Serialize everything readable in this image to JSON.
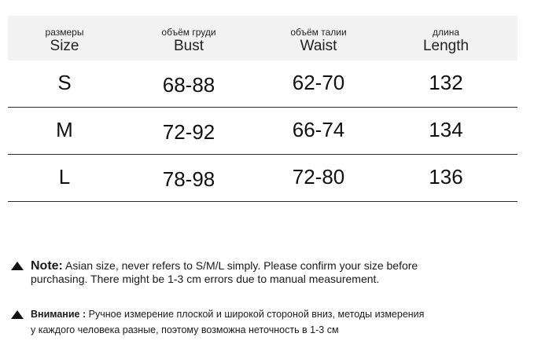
{
  "table": {
    "headers": [
      {
        "ru": "размеры",
        "en": "Size"
      },
      {
        "ru": "объём груди",
        "en": "Bust"
      },
      {
        "ru": "объём талии",
        "en": "Waist"
      },
      {
        "ru": "длина",
        "en": "Length"
      }
    ],
    "rows": [
      [
        "S",
        "68-88",
        "62-70",
        "132"
      ],
      [
        "M",
        "72-92",
        "66-74",
        "134"
      ],
      [
        "L",
        "78-98",
        "72-80",
        "136"
      ]
    ]
  },
  "notes": {
    "english": {
      "label": "Note:",
      "line1": "Asian size, never refers to S/M/L simply. Please confirm your size before",
      "line2": "purchasing. There might be 1-3 cm errors due to manual measurement."
    },
    "russian": {
      "label": "Внимание :",
      "line1": "Ручное измерение плоской и широкой стороной вниз, методы измерения",
      "line2": "у каждого человека разные, поэтому возможна неточность в 1-3 см"
    }
  }
}
